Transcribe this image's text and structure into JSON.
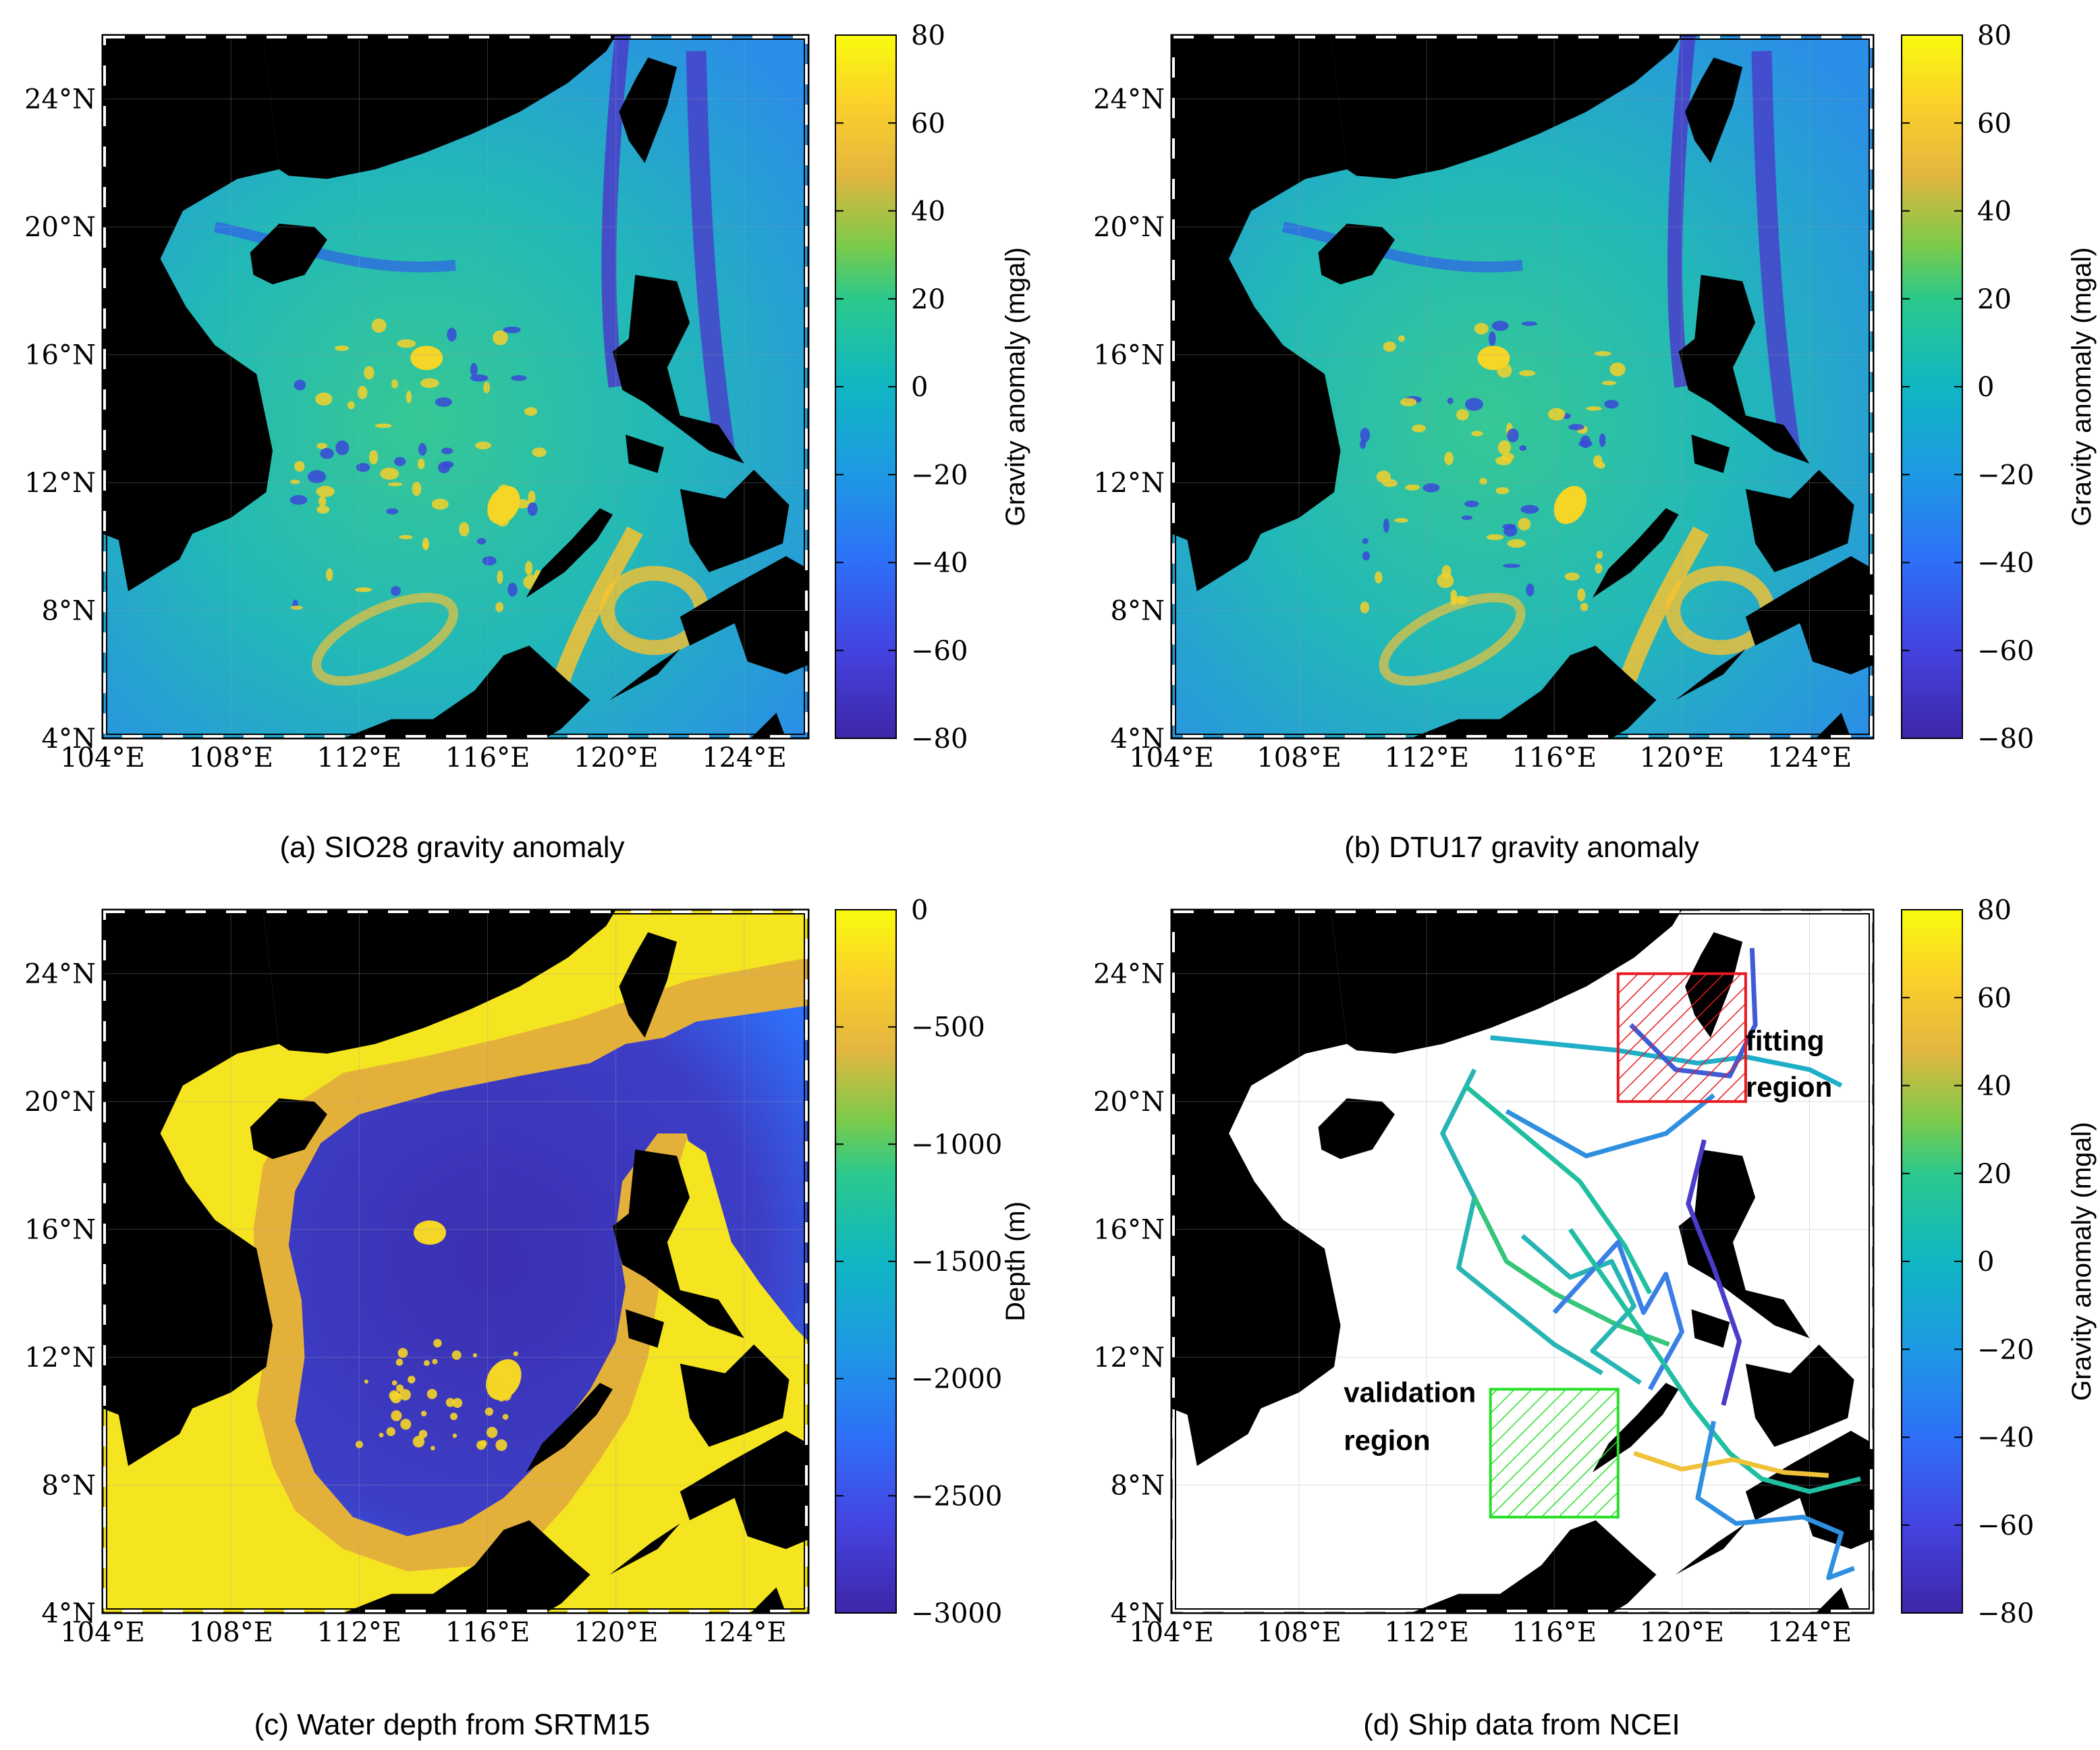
{
  "x_ticks": [
    "104°E",
    "108°E",
    "112°E",
    "116°E",
    "120°E",
    "124°E"
  ],
  "y_ticks": [
    "4°N",
    "8°N",
    "12°N",
    "16°N",
    "20°N",
    "24°N"
  ],
  "panels": [
    {
      "id": "a",
      "caption": "(a) SIO28 gravity anomaly",
      "colorbar": {
        "title": "Gravity anomaly (mgal)",
        "ticks": [
          "80",
          "60",
          "40",
          "20",
          "0",
          "−20",
          "−40",
          "−60",
          "−80"
        ]
      },
      "background": "ocean-field"
    },
    {
      "id": "b",
      "caption": "(b) DTU17 gravity anomaly",
      "colorbar": {
        "title": "Gravity anomaly (mgal)",
        "ticks": [
          "80",
          "60",
          "40",
          "20",
          "0",
          "−20",
          "−40",
          "−60",
          "−80"
        ]
      },
      "background": "ocean-field"
    },
    {
      "id": "c",
      "caption": "(c) Water depth from SRTM15",
      "colorbar": {
        "title": "Depth (m)",
        "ticks": [
          "0",
          "−500",
          "−1000",
          "−1500",
          "−2000",
          "−2500",
          "−3000"
        ]
      },
      "background": "depth-field"
    },
    {
      "id": "d",
      "caption": "(d) Ship data from NCEI",
      "colorbar": {
        "title": "Gravity anomaly (mgal)",
        "ticks": [
          "80",
          "60",
          "40",
          "20",
          "0",
          "−20",
          "−40",
          "−60",
          "−80"
        ]
      },
      "background": "white",
      "annotations": {
        "fitting_line1": "fitting",
        "fitting_line2": "region",
        "validation_line1": "validation",
        "validation_line2": "region"
      }
    }
  ],
  "map_extent": {
    "lon": [
      104,
      126
    ],
    "lat": [
      4,
      26
    ]
  },
  "colormap": [
    "#3e26a8",
    "#2e5bfa",
    "#1e99e4",
    "#13bea8",
    "#36ce6a",
    "#a6c831",
    "#f3b838",
    "#fdd624",
    "#f9fb0e"
  ],
  "land_color": "#000000",
  "regions": {
    "fitting": {
      "lon": [
        118,
        122
      ],
      "lat": [
        20,
        24
      ],
      "color": "#e8191f"
    },
    "validation": {
      "lon": [
        114,
        118
      ],
      "lat": [
        7,
        11
      ],
      "color": "#27e027"
    }
  }
}
